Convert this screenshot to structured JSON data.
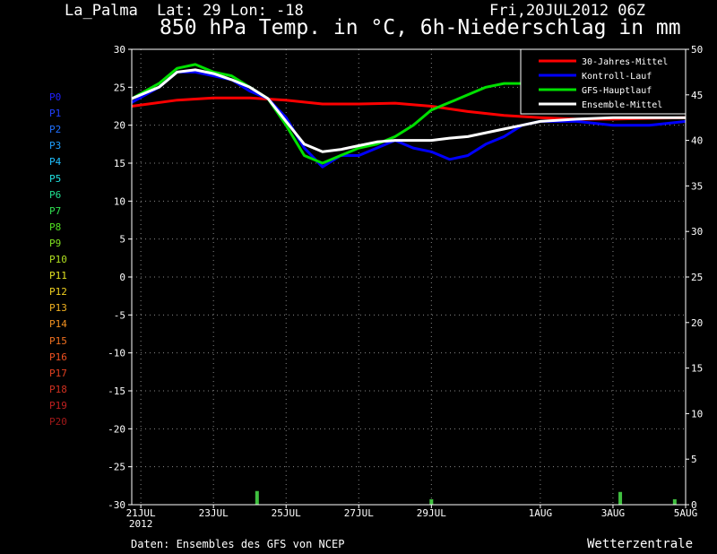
{
  "header": {
    "station": "La_Palma",
    "coords": "Lat: 29 Lon: -18",
    "date": "Fri,20JUL2012 06Z",
    "title": "850 hPa Temp. in °C, 6h-Niederschlag in mm"
  },
  "footer": {
    "source": "Daten: Ensembles des GFS von NCEP",
    "brand": "Wetterzentrale"
  },
  "members": [
    {
      "label": "P0",
      "color": "#2020ff"
    },
    {
      "label": "P1",
      "color": "#2040ff"
    },
    {
      "label": "P2",
      "color": "#2070ff"
    },
    {
      "label": "P3",
      "color": "#20a0ff"
    },
    {
      "label": "P4",
      "color": "#20c0ff"
    },
    {
      "label": "P5",
      "color": "#20e0e0"
    },
    {
      "label": "P6",
      "color": "#20e090"
    },
    {
      "label": "P7",
      "color": "#30e050"
    },
    {
      "label": "P8",
      "color": "#50e020"
    },
    {
      "label": "P9",
      "color": "#80e020"
    },
    {
      "label": "P10",
      "color": "#b0e020"
    },
    {
      "label": "P11",
      "color": "#e0e020"
    },
    {
      "label": "P12",
      "color": "#f0d020"
    },
    {
      "label": "P13",
      "color": "#f0b020"
    },
    {
      "label": "P14",
      "color": "#f09020"
    },
    {
      "label": "P15",
      "color": "#f07020"
    },
    {
      "label": "P16",
      "color": "#f05020"
    },
    {
      "label": "P17",
      "color": "#e04020"
    },
    {
      "label": "P18",
      "color": "#d03020"
    },
    {
      "label": "P19",
      "color": "#c02020"
    },
    {
      "label": "P20",
      "color": "#a01818"
    }
  ],
  "chart_data": {
    "type": "line",
    "xlabel": "",
    "ylabel": "",
    "x_ticks": [
      {
        "label": "21JUL",
        "sub": "2012",
        "day": 1
      },
      {
        "label": "23JUL",
        "sub": "",
        "day": 3
      },
      {
        "label": "25JUL",
        "sub": "",
        "day": 5
      },
      {
        "label": "27JUL",
        "sub": "",
        "day": 7
      },
      {
        "label": "29JUL",
        "sub": "",
        "day": 9
      },
      {
        "label": "1AUG",
        "sub": "",
        "day": 12
      },
      {
        "label": "3AUG",
        "sub": "",
        "day": 14
      },
      {
        "label": "5AUG",
        "sub": "",
        "day": 16
      }
    ],
    "xlim": [
      0.75,
      16
    ],
    "ylim": [
      -30,
      30
    ],
    "y_ticks": [
      30,
      25,
      20,
      15,
      10,
      5,
      0,
      -5,
      -10,
      -15,
      -20,
      -25,
      -30
    ],
    "y2lim": [
      0,
      50
    ],
    "y2_ticks": [
      50,
      45,
      40,
      35,
      30,
      25,
      20,
      15,
      10,
      5,
      0
    ],
    "grid": true,
    "legend": {
      "position": "top-right",
      "entries": [
        {
          "name": "30-Jahres-Mittel",
          "color": "#ff0000"
        },
        {
          "name": "Kontroll-Lauf",
          "color": "#0000ff"
        },
        {
          "name": "GFS-Hauptlauf",
          "color": "#00e000"
        },
        {
          "name": "Ensemble-Mittel",
          "color": "#ffffff"
        }
      ]
    },
    "series": [
      {
        "name": "30-Jahres-Mittel",
        "color": "#ff0000",
        "x": [
          0.75,
          2,
          3,
          4,
          5,
          6,
          7,
          8,
          9,
          10,
          11,
          12,
          13,
          14,
          15,
          16
        ],
        "y": [
          22.5,
          23.3,
          23.6,
          23.6,
          23.3,
          22.8,
          22.8,
          22.9,
          22.5,
          21.8,
          21.3,
          21.0,
          20.8,
          20.8,
          20.9,
          21.0
        ]
      },
      {
        "name": "Kontroll-Lauf",
        "color": "#0000ff",
        "x": [
          0.75,
          1.5,
          2,
          2.5,
          3,
          3.5,
          4,
          4.5,
          5,
          5.5,
          6,
          6.5,
          7,
          7.5,
          8,
          8.5,
          9,
          9.5,
          10,
          10.5,
          11,
          11.5,
          12,
          13,
          14,
          15,
          16
        ],
        "y": [
          23,
          25,
          27,
          27,
          26.5,
          26,
          24.5,
          23.5,
          21,
          17,
          14.5,
          16,
          16,
          17,
          18,
          17,
          16.5,
          15.5,
          16,
          17.5,
          18.5,
          20,
          20.5,
          20.5,
          20,
          20,
          20.5
        ]
      },
      {
        "name": "GFS-Hauptlauf",
        "color": "#00e000",
        "x": [
          0.75,
          1.5,
          2,
          2.5,
          3,
          3.5,
          4,
          4.5,
          5,
          5.5,
          6,
          6.5,
          7,
          7.5,
          8,
          8.5,
          9,
          9.5,
          10,
          10.5,
          11,
          11.5
        ],
        "y": [
          23.5,
          25.5,
          27.5,
          28,
          27,
          26.5,
          25,
          23.5,
          20,
          16,
          15,
          16,
          17,
          17.5,
          18.5,
          20,
          22,
          23,
          24,
          25,
          25.5,
          25.5
        ]
      },
      {
        "name": "Ensemble-Mittel",
        "color": "#ffffff",
        "x": [
          0.75,
          1.5,
          2,
          2.5,
          3,
          3.5,
          4,
          4.5,
          5,
          5.5,
          6,
          6.5,
          7,
          7.5,
          8,
          8.5,
          9,
          9.5,
          10,
          10.5,
          11,
          11.5,
          12,
          13,
          14,
          15,
          16
        ],
        "y": [
          23.5,
          25,
          27,
          27.3,
          26.8,
          26,
          25,
          23.5,
          20.5,
          17.5,
          16.5,
          16.8,
          17.3,
          17.8,
          18,
          18,
          18,
          18.3,
          18.5,
          19,
          19.5,
          20,
          20.5,
          20.8,
          21,
          21,
          21
        ]
      }
    ],
    "precip_bars": [
      {
        "x": 4.2,
        "value": 1.5
      },
      {
        "x": 9.0,
        "value": 0.6
      },
      {
        "x": 14.2,
        "value": 1.4
      },
      {
        "x": 15.7,
        "value": 0.6
      }
    ]
  }
}
